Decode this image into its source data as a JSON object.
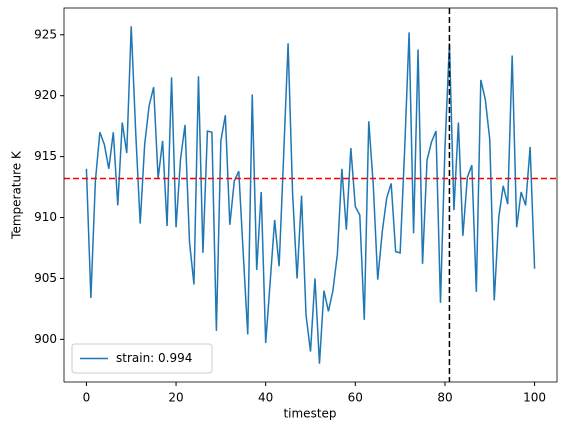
{
  "chart_data": {
    "type": "line",
    "xlabel": "timestep",
    "ylabel": "Temperature K",
    "x": [
      0,
      1,
      2,
      3,
      4,
      5,
      6,
      7,
      8,
      9,
      10,
      11,
      12,
      13,
      14,
      15,
      16,
      17,
      18,
      19,
      20,
      21,
      22,
      23,
      24,
      25,
      26,
      27,
      28,
      29,
      30,
      31,
      32,
      33,
      34,
      35,
      36,
      37,
      38,
      39,
      40,
      41,
      42,
      43,
      44,
      45,
      46,
      47,
      48,
      49,
      50,
      51,
      52,
      53,
      54,
      55,
      56,
      57,
      58,
      59,
      60,
      61,
      62,
      63,
      64,
      65,
      66,
      67,
      68,
      69,
      70,
      71,
      72,
      73,
      74,
      75,
      76,
      77,
      78,
      79,
      80,
      81,
      82,
      83,
      84,
      85,
      86,
      87,
      88,
      89,
      90,
      91,
      92,
      93,
      94,
      95,
      96,
      97,
      98,
      99,
      100
    ],
    "series": [
      {
        "name": "strain: 0.994",
        "color": "#1f77b4",
        "values": [
          914,
          903.4,
          913,
          917,
          916,
          914,
          917,
          911,
          917.8,
          915.3,
          925.7,
          917,
          909.5,
          916,
          919.2,
          920.7,
          913.2,
          916.3,
          909.3,
          921.5,
          909.2,
          914.8,
          917.6,
          908,
          904.5,
          921.6,
          907.1,
          917.1,
          917,
          900.7,
          916.3,
          918.4,
          909.4,
          913,
          913.8,
          907,
          900.4,
          920.1,
          905.7,
          912.1,
          899.7,
          904.7,
          909.8,
          906,
          915,
          924.3,
          912,
          905,
          911.8,
          902,
          899,
          905,
          898,
          904,
          902.3,
          904,
          907,
          914,
          909,
          915.7,
          910.9,
          910.2,
          901.6,
          917.9,
          912.7,
          904.9,
          908.8,
          911.6,
          912.8,
          907.2,
          907.1,
          915.5,
          925.2,
          908.7,
          923.8,
          906.2,
          914.7,
          916.2,
          917.1,
          903,
          915.7,
          924.3,
          910.6,
          917.8,
          908.5,
          913.3,
          914.3,
          903.9,
          921.3,
          919.7,
          916.4,
          903.2,
          910,
          912.6,
          911.1,
          923.3,
          909.2,
          912.1,
          911,
          915.8,
          905.8
        ]
      }
    ],
    "hline": {
      "value": 913.2,
      "color": "#ff0000"
    },
    "vline": {
      "value": 81,
      "color": "#000000"
    },
    "xlim": [
      -5,
      105
    ],
    "ylim": [
      896.5,
      927.2
    ],
    "xticks": [
      0,
      20,
      40,
      60,
      80,
      100
    ],
    "yticks": [
      900,
      905,
      910,
      915,
      920,
      925
    ],
    "legend": "lower left"
  }
}
